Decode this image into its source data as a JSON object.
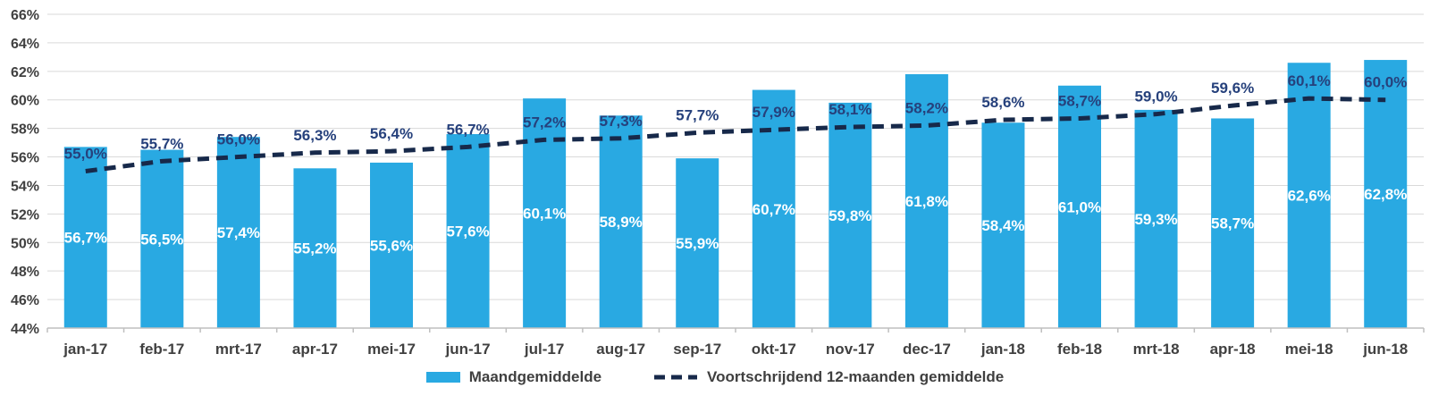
{
  "colors": {
    "background": "#ffffff",
    "bar": "#29a9e2",
    "bar_label": "#ffffff",
    "trend_line": "#17294a",
    "trend_label": "#26417c",
    "gridline": "#d9d9d9",
    "axis_line": "#bfbfbf",
    "axis_text": "#404040",
    "legend_text": "#3f3f3f"
  },
  "chart_data": {
    "type": "bar",
    "categories": [
      "jan-17",
      "feb-17",
      "mrt-17",
      "apr-17",
      "mei-17",
      "jun-17",
      "jul-17",
      "aug-17",
      "sep-17",
      "okt-17",
      "nov-17",
      "dec-17",
      "jan-18",
      "feb-18",
      "mrt-18",
      "apr-18",
      "mei-18",
      "jun-18"
    ],
    "series": [
      {
        "name": "Maandgemiddelde",
        "type": "bar",
        "values": [
          56.7,
          56.5,
          57.4,
          55.2,
          55.6,
          57.6,
          60.1,
          58.9,
          55.9,
          60.7,
          59.8,
          61.8,
          58.4,
          61.0,
          59.3,
          58.7,
          62.6,
          62.8
        ],
        "labels": [
          "56,7%",
          "56,5%",
          "57,4%",
          "55,2%",
          "55,6%",
          "57,6%",
          "60,1%",
          "58,9%",
          "55,9%",
          "60,7%",
          "59,8%",
          "61,8%",
          "58,4%",
          "61,0%",
          "59,3%",
          "58,7%",
          "62,6%",
          "62,8%"
        ]
      },
      {
        "name": "Voortschrijdend 12-maanden gemiddelde",
        "type": "line",
        "dashed": true,
        "values": [
          55.0,
          55.7,
          56.0,
          56.3,
          56.4,
          56.7,
          57.2,
          57.3,
          57.7,
          57.9,
          58.1,
          58.2,
          58.6,
          58.7,
          59.0,
          59.6,
          60.1,
          60.0
        ],
        "labels": [
          "55,0%",
          "55,7%",
          "56,0%",
          "56,3%",
          "56,4%",
          "56,7%",
          "57,2%",
          "57,3%",
          "57,7%",
          "57,9%",
          "58,1%",
          "58,2%",
          "58,6%",
          "58,7%",
          "59,0%",
          "59,6%",
          "60,1%",
          "60,0%"
        ]
      }
    ],
    "title": "",
    "xlabel": "",
    "ylabel": "",
    "ylim": [
      44,
      66
    ],
    "yticks": [
      {
        "value": 44,
        "label": "44%"
      },
      {
        "value": 46,
        "label": "46%"
      },
      {
        "value": 48,
        "label": "48%"
      },
      {
        "value": 50,
        "label": "50%"
      },
      {
        "value": 52,
        "label": "52%"
      },
      {
        "value": 54,
        "label": "54%"
      },
      {
        "value": 56,
        "label": "56%"
      },
      {
        "value": 58,
        "label": "58%"
      },
      {
        "value": 60,
        "label": "60%"
      },
      {
        "value": 62,
        "label": "62%"
      },
      {
        "value": 64,
        "label": "64%"
      },
      {
        "value": 66,
        "label": "66%"
      }
    ],
    "grid": true,
    "legend_position": "bottom"
  }
}
